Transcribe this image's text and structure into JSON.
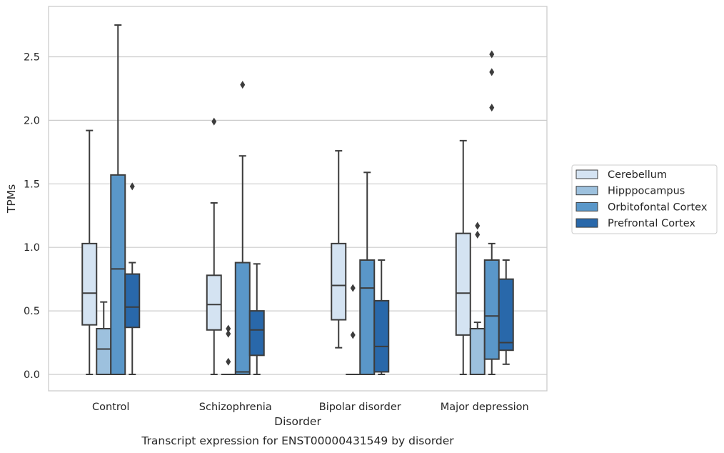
{
  "caption": "Transcript expression for ENST00000431549 by disorder",
  "chart_data": {
    "type": "box",
    "xlabel": "Disorder",
    "ylabel": "TPMs",
    "ylim": [
      -0.13,
      2.9
    ],
    "yticks": [
      "0.0",
      "0.5",
      "1.0",
      "1.5",
      "2.0",
      "2.5"
    ],
    "grid": true,
    "legend_position": "right",
    "categories": [
      "Control",
      "Schizophrenia",
      "Bipolar disorder",
      "Major depression"
    ],
    "series": [
      {
        "name": "Cerebellum",
        "color": "#d4e3f2",
        "boxes": [
          {
            "whisker_low": 0.0,
            "q1": 0.39,
            "median": 0.64,
            "q3": 1.03,
            "whisker_high": 1.92,
            "outliers": []
          },
          {
            "whisker_low": 0.0,
            "q1": 0.35,
            "median": 0.55,
            "q3": 0.78,
            "whisker_high": 1.35,
            "outliers": [
              1.99
            ]
          },
          {
            "whisker_low": 0.21,
            "q1": 0.43,
            "median": 0.7,
            "q3": 1.03,
            "whisker_high": 1.76,
            "outliers": []
          },
          {
            "whisker_low": 0.0,
            "q1": 0.31,
            "median": 0.64,
            "q3": 1.11,
            "whisker_high": 1.84,
            "outliers": []
          }
        ]
      },
      {
        "name": "Hipppocampus",
        "color": "#9dc1de",
        "boxes": [
          {
            "whisker_low": 0.0,
            "q1": 0.0,
            "median": 0.2,
            "q3": 0.36,
            "whisker_high": 0.57,
            "outliers": []
          },
          {
            "whisker_low": 0.0,
            "q1": 0.0,
            "median": 0.0,
            "q3": 0.0,
            "whisker_high": 0.0,
            "outliers": [
              0.1,
              0.32,
              0.36
            ]
          },
          {
            "whisker_low": 0.0,
            "q1": 0.0,
            "median": 0.0,
            "q3": 0.0,
            "whisker_high": 0.0,
            "outliers": [
              0.31,
              0.68
            ]
          },
          {
            "whisker_low": 0.0,
            "q1": 0.0,
            "median": 0.36,
            "q3": 0.36,
            "whisker_high": 0.41,
            "outliers": [
              1.1,
              1.17
            ]
          }
        ]
      },
      {
        "name": "Orbitofontal Cortex",
        "color": "#5a97c9",
        "boxes": [
          {
            "whisker_low": 0.0,
            "q1": 0.0,
            "median": 0.83,
            "q3": 1.57,
            "whisker_high": 2.75,
            "outliers": []
          },
          {
            "whisker_low": 0.0,
            "q1": 0.0,
            "median": 0.02,
            "q3": 0.88,
            "whisker_high": 1.72,
            "outliers": [
              2.28
            ]
          },
          {
            "whisker_low": 0.0,
            "q1": 0.0,
            "median": 0.68,
            "q3": 0.9,
            "whisker_high": 1.59,
            "outliers": []
          },
          {
            "whisker_low": 0.0,
            "q1": 0.12,
            "median": 0.46,
            "q3": 0.9,
            "whisker_high": 1.03,
            "outliers": [
              2.1,
              2.38,
              2.52
            ]
          }
        ]
      },
      {
        "name": "Prefrontal Cortex",
        "color": "#2968aa",
        "boxes": [
          {
            "whisker_low": 0.0,
            "q1": 0.37,
            "median": 0.53,
            "q3": 0.79,
            "whisker_high": 0.88,
            "outliers": [
              1.48
            ]
          },
          {
            "whisker_low": 0.0,
            "q1": 0.15,
            "median": 0.35,
            "q3": 0.5,
            "whisker_high": 0.87,
            "outliers": []
          },
          {
            "whisker_low": 0.0,
            "q1": 0.02,
            "median": 0.22,
            "q3": 0.58,
            "whisker_high": 0.9,
            "outliers": []
          },
          {
            "whisker_low": 0.08,
            "q1": 0.19,
            "median": 0.25,
            "q3": 0.75,
            "whisker_high": 0.9,
            "outliers": []
          }
        ]
      }
    ]
  }
}
